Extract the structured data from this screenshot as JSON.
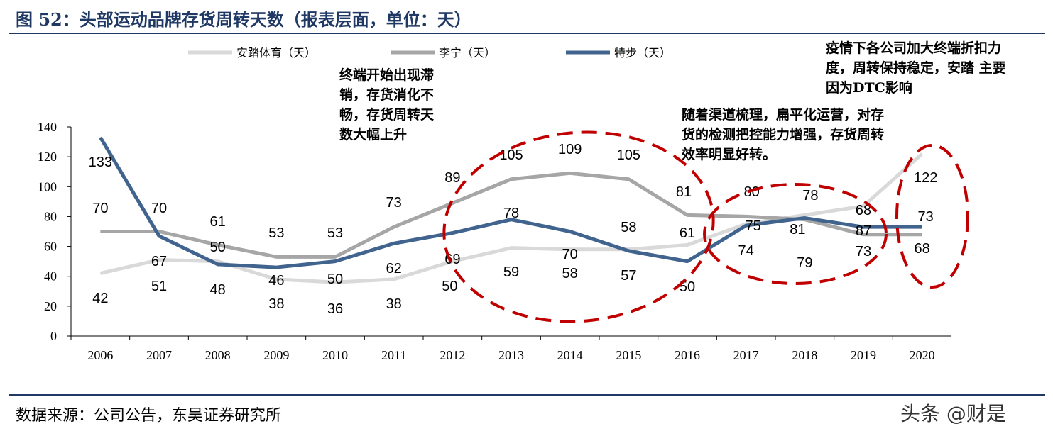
{
  "title": "图 52：头部运动品牌存货周转天数（报表层面，单位：天）",
  "source": "数据来源：公司公告，东吴证券研究所",
  "watermark": "头条 @财是",
  "annotations": [
    "终端开始出现滞销，存货消化不畅，存货周转天数大幅上升",
    "随着渠道梳理，扁平化运营，对存货的检测把控能力增强，存货周转效率明显好转。",
    "疫情下各公司加大终端折扣力度，周转保持稳定，安踏 主要因为DTC影响"
  ],
  "chart_data": {
    "type": "line",
    "title": "",
    "xlabel": "",
    "ylabel": "",
    "ylim": [
      0,
      140
    ],
    "yticks": [
      "0",
      "20",
      "40",
      "60",
      "80",
      "100",
      "120",
      "140"
    ],
    "categories": [
      "2006",
      "2007",
      "2008",
      "2009",
      "2010",
      "2011",
      "2012",
      "2013",
      "2014",
      "2015",
      "2016",
      "2017",
      "2018",
      "2019",
      "2020"
    ],
    "legend_position": "top",
    "grid": false,
    "series": [
      {
        "name": "安踏体育（天）",
        "color": "#d9d9d9",
        "values": [
          42,
          51,
          50,
          38,
          36,
          38,
          50,
          59,
          58,
          58,
          61,
          75,
          81,
          87,
          122
        ]
      },
      {
        "name": "李宁（天）",
        "color": "#a6a6a6",
        "values": [
          70,
          70,
          61,
          53,
          53,
          73,
          89,
          105,
          109,
          105,
          81,
          80,
          78,
          68,
          68
        ]
      },
      {
        "name": "特步（天）",
        "color": "#41648f",
        "values": [
          133,
          67,
          48,
          46,
          50,
          62,
          69,
          78,
          70,
          57,
          50,
          74,
          79,
          73,
          73
        ]
      }
    ],
    "highlight_color": "#c00000"
  }
}
